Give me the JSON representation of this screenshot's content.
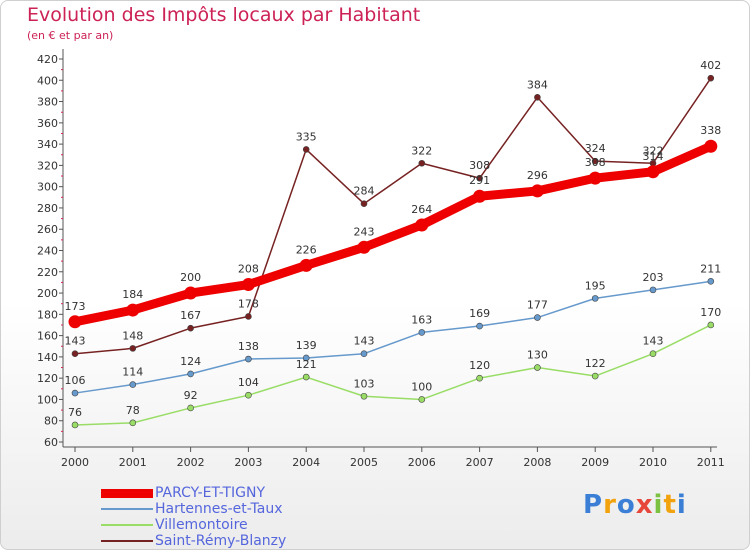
{
  "header": {
    "title": "Evolution des Impôts locaux par Habitant",
    "subtitle": "(en € et par an)"
  },
  "logo": {
    "text": "Proxiti",
    "colors": [
      "#3a7fd5",
      "#f2a20c",
      "#3a7fd5",
      "#e6473a",
      "#7cc242",
      "#f2a20c",
      "#3a7fd5"
    ]
  },
  "chart_data": {
    "type": "line",
    "title": "Evolution des Impôts locaux par Habitant",
    "subtitle": "(en € et par an)",
    "x": [
      "2000",
      "2001",
      "2002",
      "2003",
      "2004",
      "2005",
      "2006",
      "2007",
      "2008",
      "2009",
      "2010",
      "2011"
    ],
    "ylim": [
      60,
      420
    ],
    "yticks": [
      60,
      80,
      100,
      120,
      140,
      160,
      180,
      200,
      220,
      240,
      260,
      280,
      300,
      320,
      340,
      360,
      380,
      400,
      420
    ],
    "grid": false,
    "legend_position": "bottom-left",
    "series": [
      {
        "name": "PARCY-ET-TIGNY",
        "color": "#ee0000",
        "values": [
          173,
          184,
          200,
          208,
          226,
          243,
          264,
          291,
          296,
          308,
          314,
          338
        ]
      },
      {
        "name": "Hartennes-et-Taux",
        "color": "#6699cc",
        "values": [
          106,
          114,
          124,
          138,
          139,
          143,
          163,
          169,
          177,
          195,
          203,
          211
        ]
      },
      {
        "name": "Villemontoire",
        "color": "#99dd66",
        "values": [
          76,
          78,
          92,
          104,
          121,
          103,
          100,
          120,
          130,
          122,
          143,
          170
        ]
      },
      {
        "name": "Saint-Rémy-Blanzy",
        "color": "#772222",
        "values": [
          143,
          148,
          167,
          178,
          335,
          284,
          322,
          308,
          384,
          324,
          322,
          402
        ]
      }
    ]
  }
}
